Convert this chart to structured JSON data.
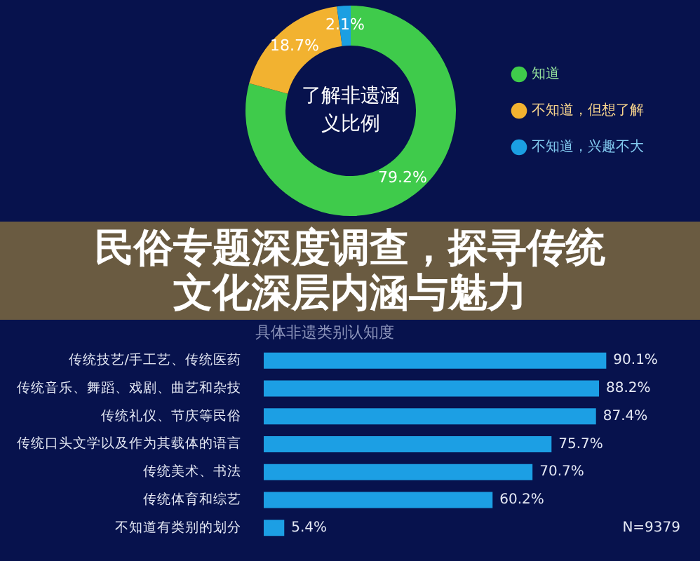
{
  "chart_data": [
    {
      "type": "donut",
      "title": "了解非遗涵义比例",
      "categories": [
        "知道",
        "不知道，但想了解",
        "不知道，兴趣不大"
      ],
      "values": [
        79.2,
        18.7,
        2.1
      ],
      "colors": [
        "#3fcb4b",
        "#f2b230",
        "#1b9fe2"
      ],
      "value_labels": [
        "79.2%",
        "18.7%",
        "2.1%"
      ],
      "legend": "right"
    },
    {
      "type": "bar",
      "orientation": "horizontal",
      "title": "民俗专题深度调查，探寻传统文化深层内涵与魅力",
      "subtitle": "具体非遗类别认知度",
      "categories": [
        "传统技艺/手工艺、传统医药",
        "传统音乐、舞蹈、戏剧、曲艺和杂技",
        "传统礼仪、节庆等民俗",
        "传统口头文学以及作为其载体的语言",
        "传统美术、书法",
        "传统体育和综艺",
        "不知道有类别的划分"
      ],
      "values": [
        90.1,
        88.2,
        87.4,
        75.7,
        70.7,
        60.2,
        5.4
      ],
      "color": "#1c9fe4",
      "value_labels": [
        "90.1%",
        "88.2%",
        "87.4%",
        "75.7%",
        "70.7%",
        "60.2%",
        "5.4%"
      ],
      "tick_labels": "y",
      "annotations": [
        "N=9379"
      ]
    }
  ]
}
